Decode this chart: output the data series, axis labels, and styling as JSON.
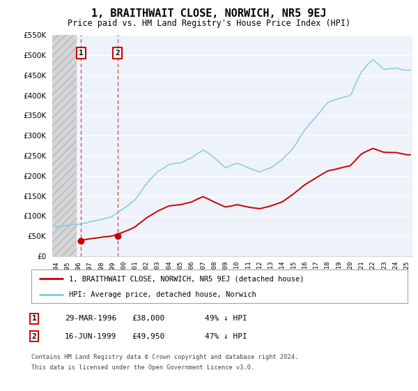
{
  "title": "1, BRAITHWAIT CLOSE, NORWICH, NR5 9EJ",
  "subtitle": "Price paid vs. HM Land Registry's House Price Index (HPI)",
  "legend_line1": "1, BRAITHWAIT CLOSE, NORWICH, NR5 9EJ (detached house)",
  "legend_line2": "HPI: Average price, detached house, Norwich",
  "table_row1_num": "1",
  "table_row1_date": "29-MAR-1996",
  "table_row1_price": "£38,000",
  "table_row1_hpi": "49% ↓ HPI",
  "table_row2_num": "2",
  "table_row2_date": "16-JUN-1999",
  "table_row2_price": "£49,950",
  "table_row2_hpi": "47% ↓ HPI",
  "footnote_line1": "Contains HM Land Registry data © Crown copyright and database right 2024.",
  "footnote_line2": "This data is licensed under the Open Government Licence v3.0.",
  "hpi_color": "#7ec8e3",
  "price_color": "#cc0000",
  "sale1_date": 1996.24,
  "sale1_price": 38000,
  "sale2_date": 1999.46,
  "sale2_price": 49950,
  "ylim_min": 0,
  "ylim_max": 550000,
  "xlim_start": 1993.7,
  "xlim_end": 2025.5,
  "plot_bg_color": "#eef2fb",
  "hpi_base_points_x": [
    1994,
    1995,
    1996,
    1997,
    1998,
    1999,
    2000,
    2001,
    2002,
    2003,
    2004,
    2005,
    2006,
    2007,
    2008,
    2009,
    2010,
    2011,
    2012,
    2013,
    2014,
    2015,
    2016,
    2017,
    2018,
    2019,
    2020,
    2021,
    2022,
    2023,
    2024,
    2025
  ],
  "hpi_base_points_y": [
    72000,
    76000,
    80000,
    85000,
    91000,
    99000,
    118000,
    140000,
    180000,
    210000,
    228000,
    232000,
    245000,
    265000,
    245000,
    220000,
    232000,
    220000,
    210000,
    220000,
    240000,
    270000,
    315000,
    348000,
    382000,
    392000,
    400000,
    460000,
    490000,
    465000,
    468000,
    462000
  ],
  "price_base_points_x": [
    1996.0,
    1997,
    1998,
    1999,
    2000,
    2001,
    2002,
    2003,
    2004,
    2005,
    2006,
    2007,
    2008,
    2009,
    2010,
    2011,
    2012,
    2013,
    2014,
    2015,
    2016,
    2017,
    2018,
    2019,
    2020,
    2021,
    2022,
    2023,
    2024,
    2025
  ],
  "price_base_points_y": [
    38000,
    43000,
    47000,
    50000,
    60000,
    72000,
    95000,
    112000,
    125000,
    128000,
    135000,
    148000,
    135000,
    122000,
    128000,
    122000,
    118000,
    125000,
    135000,
    155000,
    178000,
    195000,
    212000,
    218000,
    225000,
    255000,
    268000,
    258000,
    258000,
    252000
  ]
}
